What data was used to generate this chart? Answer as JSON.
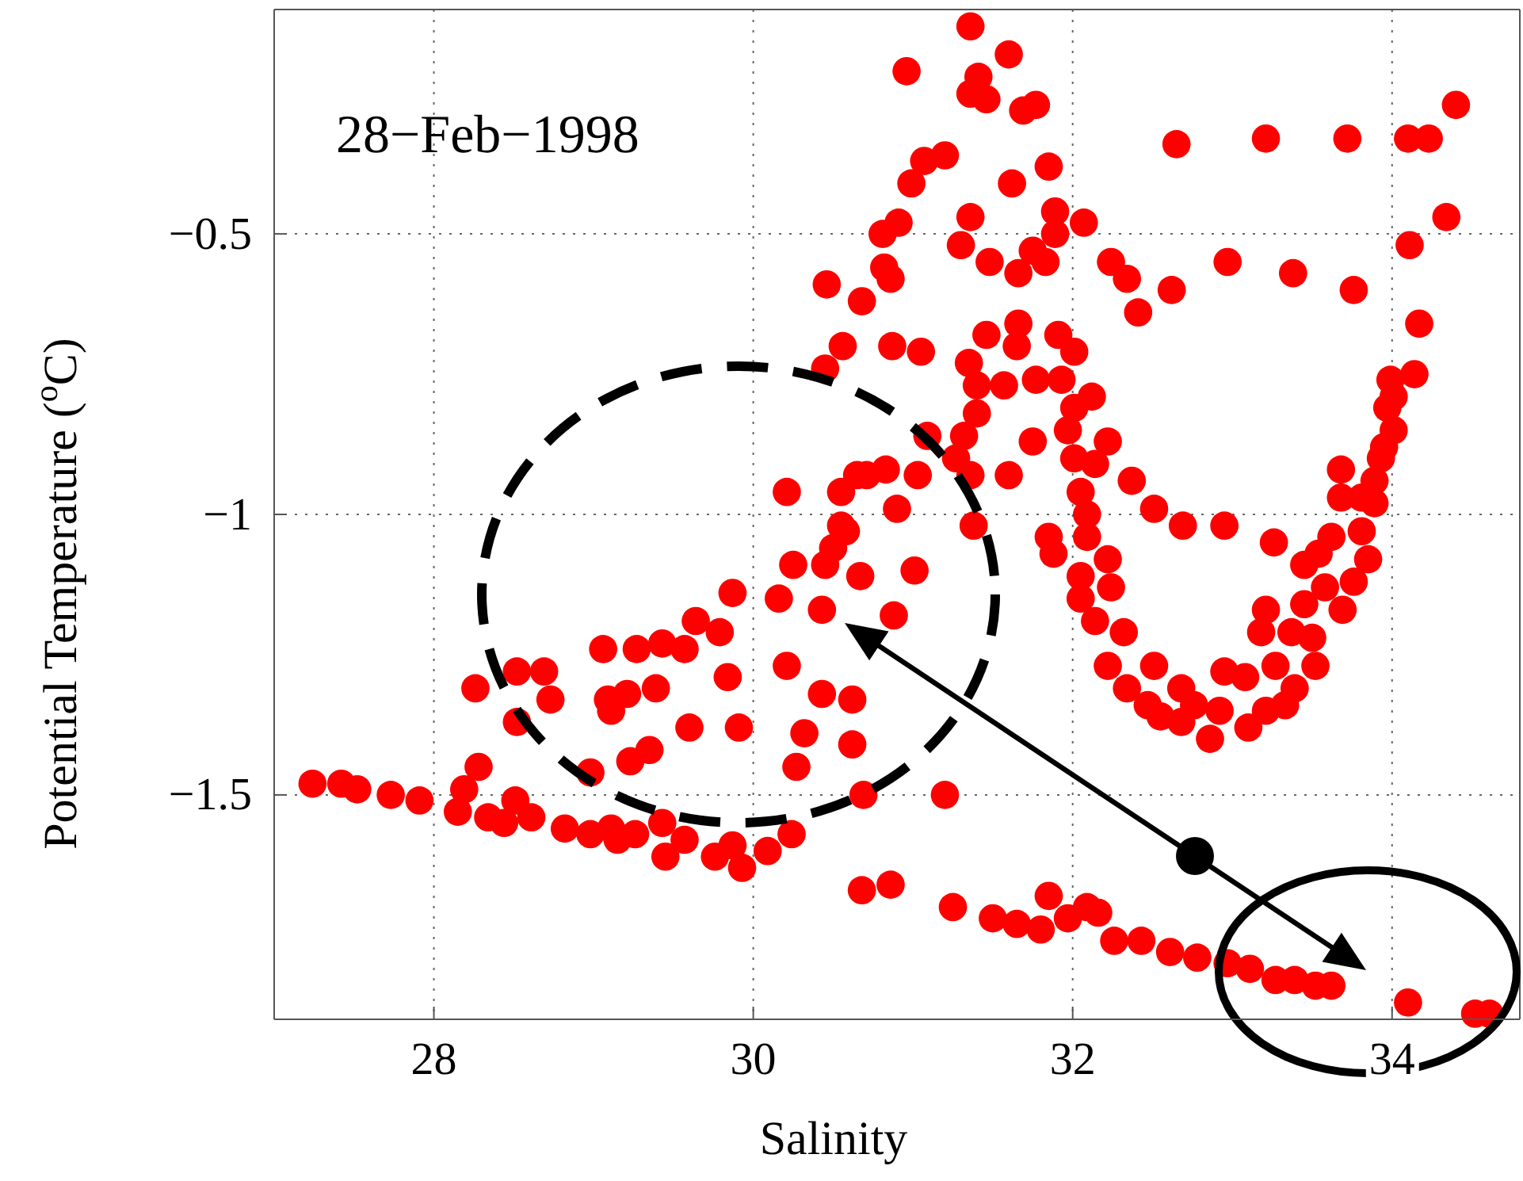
{
  "chart_data": {
    "type": "scatter",
    "xlabel": "Salinity",
    "ylabel": "Potential Temperature ($^{o}$C)",
    "annotations": [
      "28−Feb−1998"
    ],
    "xlim": [
      27,
      34.8
    ],
    "ylim": [
      -1.9,
      -0.1
    ],
    "xticks": [
      28,
      30,
      32,
      34
    ],
    "yticks": [
      -1.5,
      -1,
      -0.5
    ],
    "grid": true,
    "marker": "circle",
    "series": [
      {
        "color": "#ff0000",
        "x": [
          27.24,
          27.42,
          27.52,
          27.73,
          27.91,
          28.15,
          28.28,
          28.19,
          28.34,
          28.51,
          28.44,
          28.61,
          28.82,
          28.98,
          29.11,
          29.15,
          29.26,
          29.43,
          29.45,
          29.57,
          29.76,
          29.87,
          29.93,
          30.09,
          30.24,
          28.98,
          28.26,
          28.52,
          28.69,
          28.73,
          28.52,
          29.06,
          29.27,
          29.43,
          29.57,
          29.64,
          29.79,
          29.87,
          29.09,
          29.21,
          29.39,
          29.11,
          29.23,
          29.35,
          29.6,
          29.84,
          29.91,
          30.5,
          30.58,
          30.71,
          30.83,
          31.36,
          31.6,
          30.96,
          31.41,
          31.36,
          31.46,
          31.69,
          31.77,
          31.07,
          31.2,
          30.99,
          31.62,
          31.85,
          30.91,
          30.81,
          31.36,
          31.3,
          31.89,
          31.89,
          32.07,
          31.48,
          31.75,
          31.66,
          31.83,
          30.82,
          30.86,
          30.46,
          30.68,
          30.56,
          30.87,
          31.05,
          30.45,
          32.65,
          33.21,
          33.72,
          34.1,
          34.23,
          34.4,
          34.34,
          34.11,
          32.24,
          32.34,
          32.41,
          32.62,
          32.97,
          33.38,
          33.76,
          34.17,
          34.14,
          31.66,
          31.46,
          31.65,
          31.91,
          32.01,
          31.35,
          31.4,
          31.57,
          31.77,
          31.93,
          32.12,
          32.01,
          31.4,
          31.32,
          31.75,
          31.97,
          32.22,
          31.27,
          31.36,
          31.6,
          32.01,
          32.14,
          32.37,
          32.05,
          32.09,
          32.51,
          32.69,
          32.95,
          33.26,
          31.85,
          31.88,
          32.09,
          32.22,
          32.05,
          32.05,
          32.24,
          32.14,
          32.32,
          32.22,
          32.34,
          32.47,
          32.51,
          32.68,
          32.55,
          32.68,
          32.76,
          32.86,
          32.92,
          32.95,
          33.08,
          33.1,
          33.21,
          33.33,
          33.21,
          33.18,
          33.27,
          33.39,
          33.37,
          33.52,
          33.5,
          33.45,
          33.45,
          33.54,
          33.62,
          33.58,
          33.69,
          33.76,
          33.85,
          33.81,
          33.68,
          33.68,
          33.81,
          33.89,
          33.89,
          33.93,
          33.95,
          34.01,
          33.97,
          34.01,
          33.99,
          30.68,
          30.86,
          31.25,
          31.5,
          31.65,
          31.8,
          31.85,
          31.97,
          32.09,
          32.16,
          32.26,
          32.43,
          32.61,
          32.78,
          32.97,
          33.11,
          33.27,
          33.39,
          33.52,
          33.62,
          34.1,
          34.52,
          34.61,
          31.2,
          30.69,
          30.21,
          30.43,
          30.62,
          30.32,
          30.62,
          30.27,
          30.21,
          30.55,
          30.65,
          30.9,
          31.03,
          31.09,
          30.45,
          30.25,
          30.16,
          30.43,
          30.67,
          31.01,
          30.88,
          31.38,
          30.55
        ],
        "values": [
          -1.48,
          -1.48,
          -1.49,
          -1.5,
          -1.51,
          -1.53,
          -1.45,
          -1.49,
          -1.54,
          -1.51,
          -1.55,
          -1.54,
          -1.56,
          -1.57,
          -1.56,
          -1.58,
          -1.57,
          -1.55,
          -1.61,
          -1.58,
          -1.61,
          -1.59,
          -1.63,
          -1.6,
          -1.57,
          -1.46,
          -1.31,
          -1.28,
          -1.28,
          -1.33,
          -1.37,
          -1.24,
          -1.24,
          -1.23,
          -1.24,
          -1.19,
          -1.21,
          -1.14,
          -1.33,
          -1.32,
          -1.31,
          -1.35,
          -1.44,
          -1.42,
          -1.38,
          -1.29,
          -1.38,
          -1.06,
          -1.03,
          -0.93,
          -0.92,
          -0.13,
          -0.18,
          -0.21,
          -0.22,
          -0.25,
          -0.26,
          -0.28,
          -0.27,
          -0.37,
          -0.36,
          -0.41,
          -0.41,
          -0.38,
          -0.48,
          -0.5,
          -0.47,
          -0.52,
          -0.46,
          -0.5,
          -0.48,
          -0.55,
          -0.53,
          -0.57,
          -0.55,
          -0.56,
          -0.58,
          -0.59,
          -0.62,
          -0.7,
          -0.7,
          -0.71,
          -0.74,
          -0.34,
          -0.33,
          -0.33,
          -0.33,
          -0.33,
          -0.27,
          -0.47,
          -0.52,
          -0.55,
          -0.58,
          -0.64,
          -0.6,
          -0.55,
          -0.57,
          -0.6,
          -0.66,
          -0.75,
          -0.66,
          -0.68,
          -0.7,
          -0.68,
          -0.71,
          -0.73,
          -0.77,
          -0.77,
          -0.76,
          -0.76,
          -0.79,
          -0.81,
          -0.82,
          -0.86,
          -0.87,
          -0.85,
          -0.87,
          -0.9,
          -0.93,
          -0.93,
          -0.9,
          -0.91,
          -0.94,
          -0.96,
          -1,
          -0.99,
          -1.02,
          -1.02,
          -1.05,
          -1.04,
          -1.07,
          -1.04,
          -1.08,
          -1.11,
          -1.15,
          -1.13,
          -1.19,
          -1.21,
          -1.27,
          -1.31,
          -1.34,
          -1.27,
          -1.31,
          -1.36,
          -1.37,
          -1.34,
          -1.4,
          -1.35,
          -1.28,
          -1.29,
          -1.38,
          -1.35,
          -1.34,
          -1.17,
          -1.21,
          -1.27,
          -1.31,
          -1.21,
          -1.27,
          -1.22,
          -1.16,
          -1.09,
          -1.07,
          -1.04,
          -1.13,
          -1.17,
          -1.12,
          -1.08,
          -1.03,
          -0.97,
          -0.92,
          -0.97,
          -0.98,
          -0.94,
          -0.9,
          -0.88,
          -0.85,
          -0.81,
          -0.79,
          -0.76,
          -1.67,
          -1.66,
          -1.7,
          -1.72,
          -1.73,
          -1.74,
          -1.68,
          -1.72,
          -1.7,
          -1.71,
          -1.76,
          -1.76,
          -1.78,
          -1.79,
          -1.8,
          -1.81,
          -1.83,
          -1.83,
          -1.84,
          -1.84,
          -1.87,
          -1.89,
          -1.89,
          -1.5,
          -1.5,
          -1.27,
          -1.32,
          -1.33,
          -1.39,
          -1.41,
          -1.45,
          -0.96,
          -0.96,
          -0.93,
          -0.99,
          -0.93,
          -0.86,
          -1.09,
          -1.09,
          -1.15,
          -1.17,
          -1.11,
          -1.1,
          -1.18,
          -1.02,
          -1.02
        ]
      }
    ]
  }
}
